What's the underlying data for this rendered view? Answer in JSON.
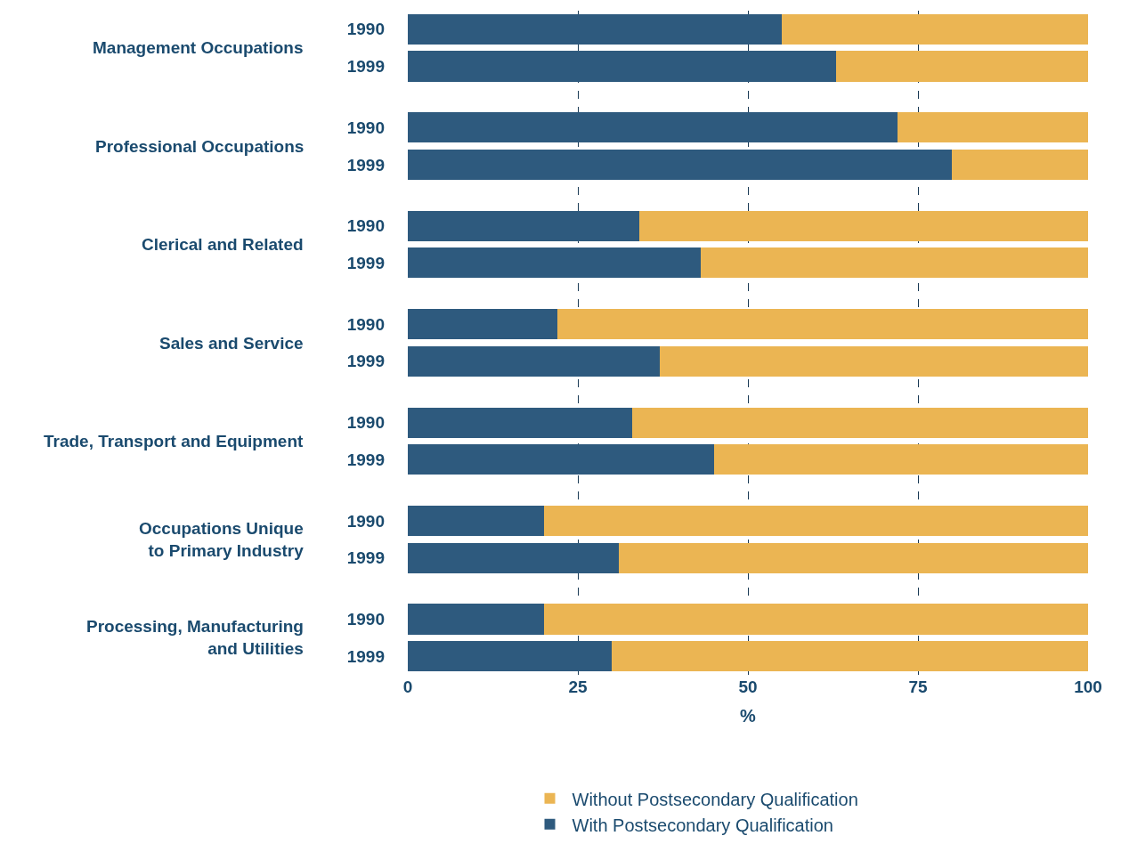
{
  "chart_data": {
    "type": "bar",
    "orientation": "horizontal",
    "stacked": true,
    "categories": [
      "1990",
      "1999",
      "1990",
      "1999",
      "1990",
      "1999",
      "1990",
      "1999",
      "1990",
      "1999",
      "1990",
      "1999",
      "1990",
      "1999"
    ],
    "series": [
      {
        "name": "With Postsecondary Qualification",
        "color": "#2e5a7e",
        "values": [
          55,
          63,
          72,
          80,
          34,
          43,
          22,
          37,
          33,
          45,
          20,
          31,
          20,
          30
        ]
      },
      {
        "name": "Without Postsecondary Qualification",
        "color": "#ebb553",
        "values": [
          45,
          37,
          28,
          20,
          66,
          57,
          78,
          63,
          67,
          55,
          80,
          69,
          80,
          70
        ]
      }
    ],
    "annotations": [
      "Management Occupations",
      "Professional Occupations",
      "Clerical and Related",
      "Sales and Service",
      "Trade, Transport and Equipment",
      "Occupations Unique\nto Primary Industry",
      "Processing, Manufacturing\nand Utilities"
    ],
    "xlabel": "%",
    "xlim": [
      0,
      100
    ],
    "xticks": [
      0,
      25,
      50,
      75,
      100
    ],
    "grid": "x",
    "legend": "bottom"
  }
}
